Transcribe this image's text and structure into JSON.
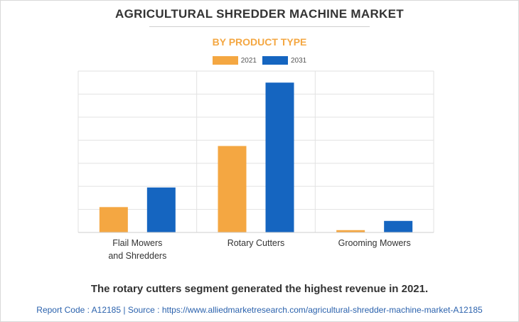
{
  "title": "AGRICULTURAL SHREDDER MACHINE MARKET",
  "subtitle": "BY PRODUCT TYPE",
  "colors": {
    "s2021": "#f4a742",
    "s2031": "#1565c0",
    "grid": "#e2e2e2",
    "subtitle": "#f4a742"
  },
  "chart_data": {
    "type": "bar",
    "categories": [
      {
        "line1": "Flail Mowers",
        "line2": "and Shredders"
      },
      {
        "line1": "Rotary Cutters",
        "line2": ""
      },
      {
        "line1": "Grooming Mowers",
        "line2": ""
      }
    ],
    "series": [
      {
        "name": "2021",
        "color": "#f4a742",
        "values": [
          1.1,
          3.75,
          0.1
        ]
      },
      {
        "name": "2031",
        "color": "#1565c0",
        "values": [
          1.95,
          6.5,
          0.5
        ]
      }
    ],
    "ylim": [
      0,
      7
    ],
    "grid": true,
    "legend": "top-center",
    "xlabel": "",
    "ylabel": ""
  },
  "footnote": "The rotary cutters segment generated the highest revenue in 2021.",
  "source_line": "Report Code : A12185  |  Source : https://www.alliedmarketresearch.com/agricultural-shredder-machine-market-A12185"
}
